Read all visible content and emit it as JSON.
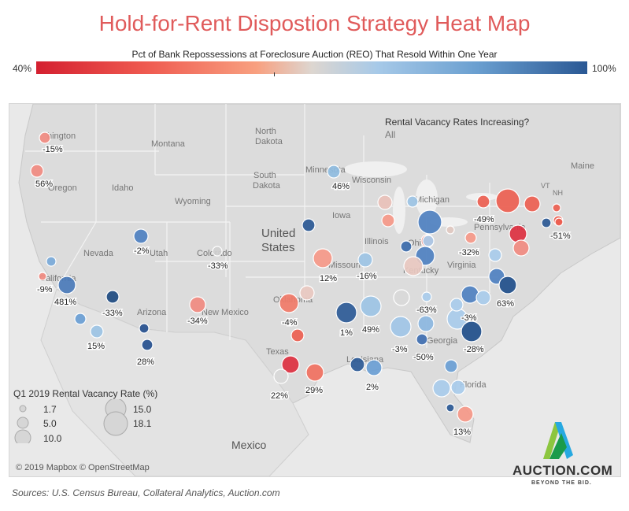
{
  "title": "Hold-for-Rent Dispostion Strategy Heat Map",
  "color_scale": {
    "title": "Pct of Bank Repossessions at Foreclosure Auction (REO) That Resold Within One Year",
    "min_label": "40%",
    "max_label": "100%",
    "colors": [
      "#d42030",
      "#f8a080",
      "#ddd6d0",
      "#a6c9e8",
      "#2a5894"
    ]
  },
  "filter": {
    "question": "Rental Vacancy Rates Increasing?",
    "value": "All"
  },
  "size_legend": {
    "title": "Q1 2019 Rental Vacancy Rate (%)",
    "items": [
      "1.7",
      "5.0",
      "10.0",
      "15.0",
      "18.1"
    ]
  },
  "map_labels": {
    "countries": [
      "United",
      "States",
      "Mexico"
    ],
    "states": [
      "hington",
      "Oregon",
      "Idaho",
      "Montana",
      "North",
      "Dakota",
      "South",
      "Dakota",
      "Wyoming",
      "Minnesota",
      "Wisconsin",
      "Iowa",
      "Nevada",
      "Utah",
      "Colorado",
      "California",
      "Arizona",
      "New Mexico",
      "Texas",
      "Oklahoma",
      "Missouri",
      "Illinois",
      "Ohio",
      "Kentucky",
      "Virginia",
      "Pennsylvania",
      "Michigan",
      "Louisiana",
      "Georgia",
      "Florida",
      "Maine",
      "VT",
      "NH"
    ]
  },
  "metros": [
    {
      "name": "Seattle",
      "color": "#f08a80",
      "label": "-15%"
    },
    {
      "name": "Portland",
      "color": "#f08a80",
      "label": "56%"
    },
    {
      "name": "Minneapolis",
      "color": "#8fbce0",
      "label": "46%"
    },
    {
      "name": "Salt Lake City",
      "color": "#4e80c0",
      "label": "-2%"
    },
    {
      "name": "Denver",
      "color": "#d0d0d0",
      "label": "-33%"
    },
    {
      "name": "Kansas City",
      "color": "#f59888",
      "label": "12%"
    },
    {
      "name": "Omaha",
      "color": "#2a5894",
      "label": ""
    },
    {
      "name": "St. Louis",
      "color": "#9cc3e4",
      "label": "-16%"
    },
    {
      "name": "Sacramento",
      "color": "#7aa9d8",
      "label": ""
    },
    {
      "name": "San Francisco",
      "color": "#f08a80",
      "label": "-9%"
    },
    {
      "name": "Fresno",
      "color": "#4a7ab8",
      "label": "481%"
    },
    {
      "name": "Los Angeles",
      "color": "#6a9ed4",
      "label": ""
    },
    {
      "name": "San Diego",
      "color": "#9cc3e4",
      "label": "15%"
    },
    {
      "name": "Las Vegas",
      "color": "#1d4a80",
      "label": "-33%"
    },
    {
      "name": "Phoenix",
      "color": "#254f8e",
      "label": ""
    },
    {
      "name": "Tucson",
      "color": "#254f8e",
      "label": "28%"
    },
    {
      "name": "Albuquerque",
      "color": "#f08a80",
      "label": "-34%"
    },
    {
      "name": "Oklahoma City",
      "color": "#f07a68",
      "label": "-4%"
    },
    {
      "name": "Tulsa",
      "color": "#e8c8c0",
      "label": ""
    },
    {
      "name": "Dallas",
      "color": "#ec5e50",
      "label": ""
    },
    {
      "name": "Austin",
      "color": "#dc3040",
      "label": ""
    },
    {
      "name": "San Antonio",
      "color": "#d8d8d8",
      "label": "22%"
    },
    {
      "name": "Houston",
      "color": "#f07060",
      "label": "29%"
    },
    {
      "name": "Little Rock",
      "color": "#2c5a96",
      "label": "1%"
    },
    {
      "name": "Memphis",
      "color": "#9cc3e4",
      "label": "49%"
    },
    {
      "name": "Nashville",
      "color": "#d8d8d8",
      "label": ""
    },
    {
      "name": "Baton Rouge",
      "color": "#2c5a96",
      "label": ""
    },
    {
      "name": "New Orleans",
      "color": "#6a9ed4",
      "label": "2%"
    },
    {
      "name": "Birmingham",
      "color": "#a0c4e6",
      "label": "-3%"
    },
    {
      "name": "Atlanta",
      "color": "#8bb6e0",
      "label": ""
    },
    {
      "name": "Macon",
      "color": "#3f6eb0",
      "label": "-50%"
    },
    {
      "name": "Columbia",
      "color": "#a8cbea",
      "label": ""
    },
    {
      "name": "Charleston",
      "color": "#1f4e8a",
      "label": "-28%"
    },
    {
      "name": "Chattanooga",
      "color": "#a8cbea",
      "label": "-63%"
    },
    {
      "name": "Milwaukee",
      "color": "#e8c0b8",
      "label": ""
    },
    {
      "name": "Chicago",
      "color": "#f59888",
      "label": ""
    },
    {
      "name": "Detroit",
      "color": "#9cc3e4",
      "label": ""
    },
    {
      "name": "Grand Rapids",
      "color": "#4e80c0",
      "label": ""
    },
    {
      "name": "Toledo",
      "color": "#f08a80",
      "label": ""
    },
    {
      "name": "Cleveland",
      "color": "#e0c8c0",
      "label": ""
    },
    {
      "name": "Indianapolis",
      "color": "#3a6aaa",
      "label": ""
    },
    {
      "name": "Columbus",
      "color": "#a8cbea",
      "label": ""
    },
    {
      "name": "Cincinnati",
      "color": "#4e80c0",
      "label": ""
    },
    {
      "name": "Louisville",
      "color": "#e8c8c0",
      "label": ""
    },
    {
      "name": "Pittsburgh",
      "color": "#f59888",
      "label": "-32%"
    },
    {
      "name": "Buffalo",
      "color": "#ec5e50",
      "label": ""
    },
    {
      "name": "Rochester",
      "color": "#ec5e50",
      "label": "-49%"
    },
    {
      "name": "Syracuse",
      "color": "#ec5e50",
      "label": ""
    },
    {
      "name": "Albany",
      "color": "#ec5e50",
      "label": ""
    },
    {
      "name": "Boston",
      "color": "#ec5e50",
      "label": ""
    },
    {
      "name": "Hartford",
      "color": "#2a5894",
      "label": "-51%"
    },
    {
      "name": "Providence",
      "color": "#ec5e50",
      "label": ""
    },
    {
      "name": "Philadelphia",
      "color": "#dc3040",
      "label": ""
    },
    {
      "name": "Baltimore",
      "color": "#f08a80",
      "label": ""
    },
    {
      "name": "Washington",
      "color": "#a8cbea",
      "label": ""
    },
    {
      "name": "Richmond",
      "color": "#4e80c0",
      "label": ""
    },
    {
      "name": "Virginia Beach",
      "color": "#1f4e8a",
      "label": "63%"
    },
    {
      "name": "Raleigh",
      "color": "#4e80c0",
      "label": ""
    },
    {
      "name": "Greensboro",
      "color": "#a8cbea",
      "label": ""
    },
    {
      "name": "Charlotte",
      "color": "#a8cbea",
      "label": "-3%"
    },
    {
      "name": "Jacksonville",
      "color": "#6a9ed4",
      "label": ""
    },
    {
      "name": "Orlando",
      "color": "#a8cbea",
      "label": ""
    },
    {
      "name": "Tampa",
      "color": "#a8cbea",
      "label": ""
    },
    {
      "name": "Fort Myers",
      "color": "#2a5894",
      "label": ""
    },
    {
      "name": "Miami",
      "color": "#f59888",
      "label": "13%"
    }
  ],
  "map_copyright": "© 2019 Mapbox © OpenStreetMap",
  "sources": "Sources: U.S. Census Bureau, Collateral Analytics, Auction.com",
  "logo": {
    "name": "AUCTION.COM",
    "tagline": "BEYOND THE BID."
  }
}
